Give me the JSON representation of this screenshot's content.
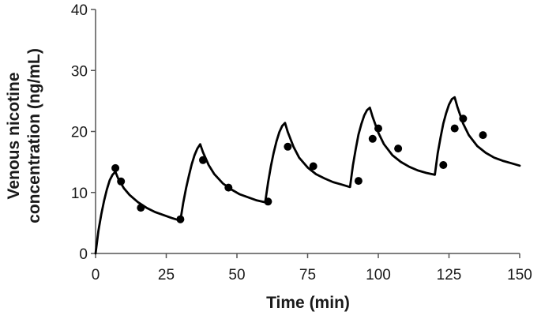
{
  "chart_data": {
    "type": "line",
    "title": "",
    "xlabel": "Time (min)",
    "ylabel_lines": [
      "Venous nicotine",
      "concentration (ng/mL)"
    ],
    "xlim": [
      0,
      150
    ],
    "ylim": [
      0,
      40
    ],
    "x_ticks": [
      0,
      25,
      50,
      75,
      100,
      125,
      150
    ],
    "y_ticks": [
      0,
      10,
      20,
      30,
      40
    ],
    "grid": false,
    "legend": "none",
    "colors": {
      "line": "#000000",
      "points": "#000000",
      "axis": "#555555"
    },
    "series": [
      {
        "type": "line",
        "x": [
          0,
          1,
          2,
          3,
          4,
          5,
          6,
          7,
          8,
          10,
          12,
          15,
          18,
          21,
          24,
          27,
          29.9,
          30,
          31,
          32,
          33,
          34,
          35,
          36,
          37,
          38,
          40,
          42,
          45,
          48,
          51,
          54,
          57,
          59.9,
          60,
          61,
          62,
          63,
          64,
          65,
          66,
          67,
          68,
          70,
          72,
          75,
          78,
          81,
          84,
          87,
          89.9,
          90,
          91,
          92,
          93,
          94,
          95,
          96,
          97,
          98,
          100,
          102,
          105,
          108,
          111,
          114,
          117,
          119.9,
          120,
          121,
          122,
          123,
          124,
          125,
          126,
          127,
          128,
          130,
          132,
          135,
          138,
          141,
          144,
          147,
          150
        ],
        "y": [
          0,
          3.7,
          6.4,
          8.6,
          10.5,
          12.0,
          12.9,
          13.4,
          12.3,
          10.7,
          9.6,
          8.4,
          7.5,
          6.8,
          6.3,
          5.8,
          5.4,
          5.4,
          8.3,
          10.7,
          12.7,
          14.6,
          16.1,
          17.2,
          17.9,
          16.6,
          14.5,
          13.0,
          11.5,
          10.5,
          9.7,
          9.2,
          8.7,
          8.4,
          8.4,
          11.6,
          14.3,
          16.5,
          18.4,
          19.9,
          20.9,
          21.4,
          19.9,
          17.5,
          15.7,
          14.1,
          13.0,
          12.3,
          11.7,
          11.3,
          10.9,
          10.9,
          14.4,
          17.1,
          19.5,
          21.2,
          22.6,
          23.5,
          23.9,
          22.4,
          19.8,
          17.9,
          16.1,
          15.0,
          14.2,
          13.6,
          13.2,
          12.9,
          12.9,
          16.4,
          19.0,
          21.3,
          23.0,
          24.4,
          25.3,
          25.6,
          24.0,
          21.3,
          19.4,
          17.6,
          16.5,
          15.7,
          15.2,
          14.8,
          14.4
        ]
      },
      {
        "type": "scatter",
        "x": [
          7,
          9,
          16,
          30,
          38,
          47,
          61,
          68,
          77,
          93,
          98,
          100,
          107,
          123,
          127,
          130,
          137
        ],
        "y": [
          14.0,
          11.8,
          7.5,
          5.6,
          15.3,
          10.8,
          8.5,
          17.5,
          14.3,
          11.9,
          18.8,
          20.5,
          17.2,
          14.5,
          20.5,
          22.1,
          19.4
        ]
      }
    ]
  }
}
